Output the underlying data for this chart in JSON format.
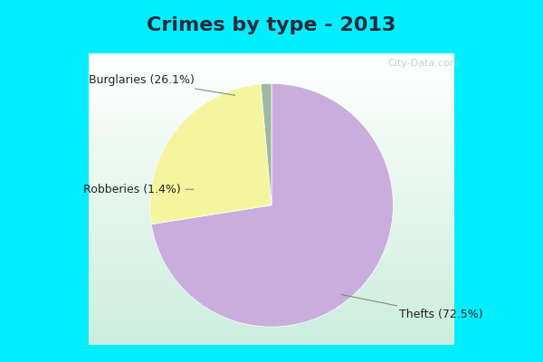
{
  "title": "Crimes by type - 2013",
  "slices": [
    {
      "label": "Thefts (72.5%)",
      "value": 72.5,
      "color": "#c9aedd"
    },
    {
      "label": "Burglaries (26.1%)",
      "value": 26.1,
      "color": "#f5f5a0"
    },
    {
      "label": "Robberies (1.4%)",
      "value": 1.4,
      "color": "#9db89d"
    }
  ],
  "title_bg_color": "#00eeff",
  "chart_bg_color": "#cceedd",
  "border_color": "#00eeff",
  "title_fontsize": 16,
  "label_fontsize": 9,
  "startangle": 90,
  "watermark": "City-Data.com",
  "title_color": "#2a2a3a"
}
